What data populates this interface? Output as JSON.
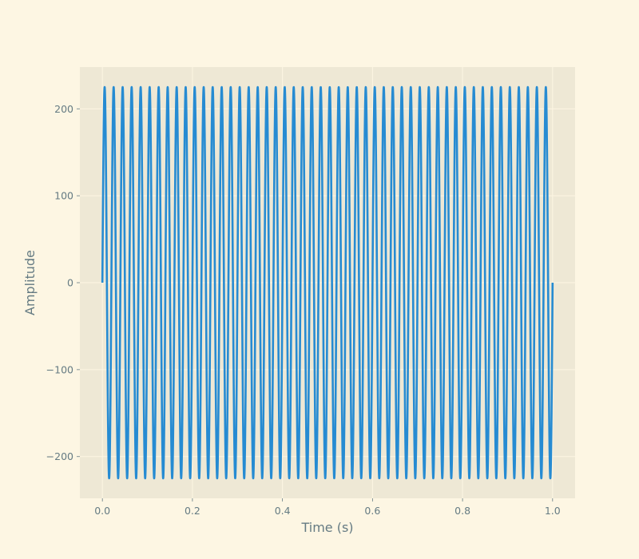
{
  "chart_data": {
    "type": "line",
    "title": "",
    "xlabel": "Time (s)",
    "ylabel": "Amplitude",
    "xlim": [
      -0.05,
      1.05
    ],
    "ylim": [
      -248,
      248
    ],
    "x_ticks": [
      0.0,
      0.2,
      0.4,
      0.6,
      0.8,
      1.0
    ],
    "x_tick_labels": [
      "0.0",
      "0.2",
      "0.4",
      "0.6",
      "0.8",
      "1.0"
    ],
    "y_ticks": [
      -200,
      -100,
      0,
      100,
      200
    ],
    "y_tick_labels": [
      "−200",
      "−100",
      "0",
      "100",
      "200"
    ],
    "grid": true,
    "series": [
      {
        "function": "sine",
        "amplitude": 225,
        "frequency_hz": 50,
        "phase": 0,
        "x_start": 0.0,
        "x_end": 1.0,
        "samples": 5000,
        "color": "#268bd2"
      }
    ]
  },
  "colors": {
    "figure_background": "#fdf6e3",
    "axes_background": "#eee8d5",
    "grid": "#fdf6e3",
    "text": "#657b83",
    "line": "#268bd2"
  }
}
